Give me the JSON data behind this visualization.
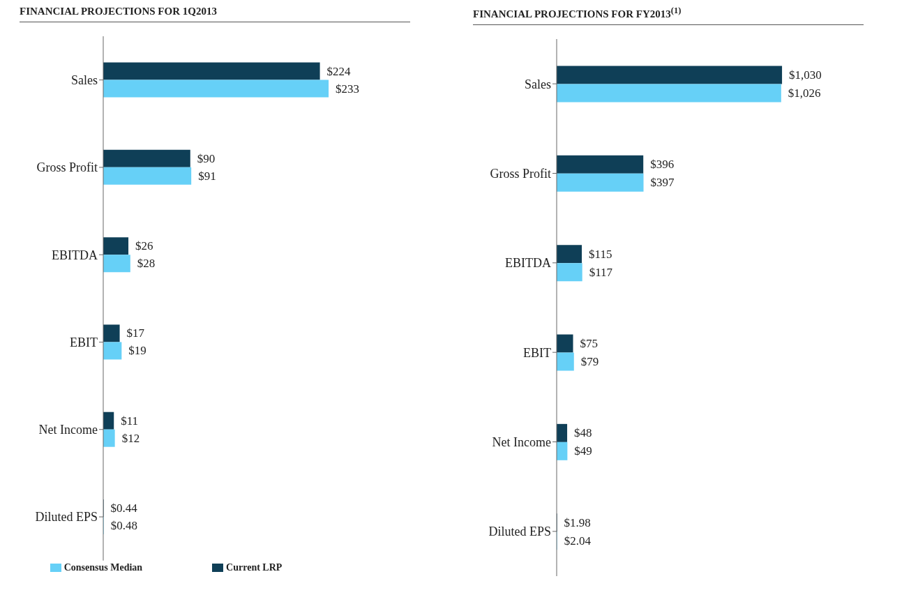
{
  "chart_data": [
    {
      "type": "bar",
      "orientation": "horizontal",
      "title": "FINANCIAL PROJECTIONS FOR 1Q2013",
      "categories": [
        "Sales",
        "Gross Profit",
        "EBITDA",
        "EBIT",
        "Net Income",
        "Diluted EPS"
      ],
      "legend": "bottom",
      "series": [
        {
          "name": "Current LRP",
          "color": "#0f3f57",
          "values": [
            224,
            90,
            26,
            17,
            11,
            0.44
          ],
          "value_labels": [
            "$224",
            "$90",
            "$26",
            "$17",
            "$11",
            "$0.44"
          ]
        },
        {
          "name": "Consensus Median",
          "color": "#66d0f7",
          "values": [
            233,
            91,
            28,
            19,
            12,
            0.48
          ],
          "value_labels": [
            "$233",
            "$91",
            "$28",
            "$19",
            "$12",
            "$0.48"
          ]
        }
      ]
    },
    {
      "type": "bar",
      "orientation": "horizontal",
      "title": "FINANCIAL PROJECTIONS FOR FY2013$^{(1)}$",
      "categories": [
        "Sales",
        "Gross Profit",
        "EBITDA",
        "EBIT",
        "Net Income",
        "Diluted EPS"
      ],
      "series": [
        {
          "color": "#0f3f57",
          "values": [
            1030,
            396,
            115,
            75,
            48,
            1.98
          ],
          "value_labels": [
            "$1,030",
            "$396",
            "$115",
            "$75",
            "$48",
            "$1.98"
          ]
        },
        {
          "color": "#66d0f7",
          "values": [
            1026,
            397,
            117,
            79,
            49,
            2.04
          ],
          "value_labels": [
            "$1,026",
            "$397",
            "$117",
            "$79",
            "$49",
            "$2.04"
          ]
        }
      ]
    }
  ]
}
